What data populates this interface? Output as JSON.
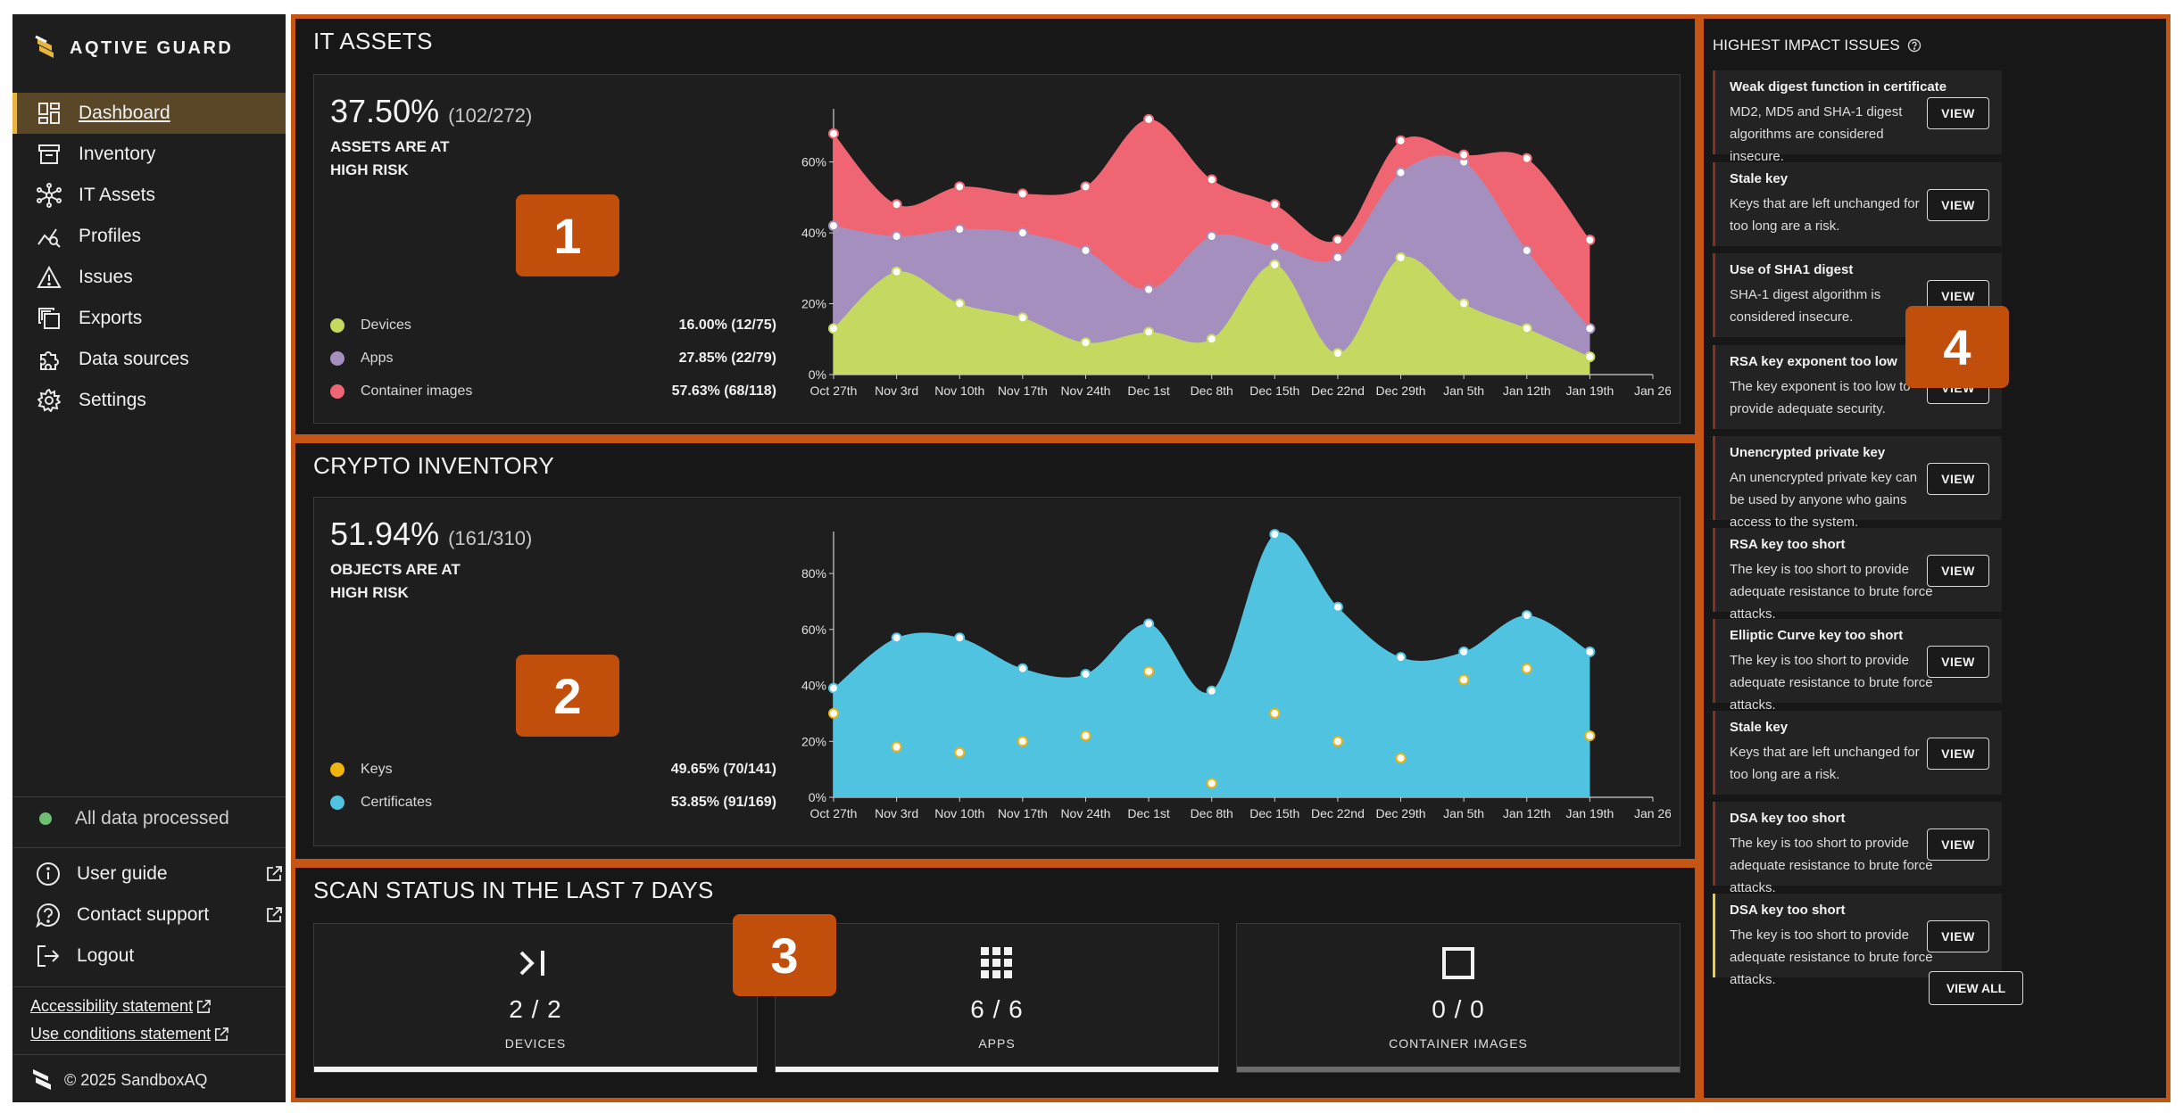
{
  "sidebar": {
    "logo_text": "AQTIVE GUARD",
    "nav": [
      {
        "label": "Dashboard",
        "icon": "dashboard-icon",
        "active": true
      },
      {
        "label": "Inventory",
        "icon": "archive-icon"
      },
      {
        "label": "IT Assets",
        "icon": "network-icon"
      },
      {
        "label": "Profiles",
        "icon": "chart-search-icon"
      },
      {
        "label": "Issues",
        "icon": "warning-icon"
      },
      {
        "label": "Exports",
        "icon": "copy-icon"
      },
      {
        "label": "Data sources",
        "icon": "puzzle-icon"
      },
      {
        "label": "Settings",
        "icon": "gear-icon"
      }
    ],
    "status": "All data processed",
    "links": [
      {
        "label": "User guide",
        "icon": "info-icon"
      },
      {
        "label": "Contact support",
        "icon": "help-icon"
      },
      {
        "label": "Logout",
        "icon": "logout-icon"
      }
    ],
    "accessibility": "Accessibility statement",
    "use_conditions": "Use conditions statement",
    "copyright": "© 2025 SandboxAQ"
  },
  "it_assets": {
    "title": "IT ASSETS",
    "percent": "37.50%",
    "fraction": "(102/272)",
    "risk_label": "ASSETS ARE AT HIGH RISK",
    "badge": "1",
    "legend": [
      {
        "name": "Devices",
        "value": "16.00%  (12/75)",
        "color": "#c5d85f"
      },
      {
        "name": "Apps",
        "value": "27.85%  (22/79)",
        "color": "#a58fbe"
      },
      {
        "name": "Container images",
        "value": "57.63%  (68/118)",
        "color": "#ef6672"
      }
    ]
  },
  "crypto": {
    "title": "CRYPTO INVENTORY",
    "percent": "51.94%",
    "fraction": "(161/310)",
    "risk_label": "OBJECTS ARE AT HIGH RISK",
    "badge": "2",
    "legend": [
      {
        "name": "Keys",
        "value": "49.65%  (70/141)",
        "color": "#f0b40f"
      },
      {
        "name": "Certificates",
        "value": "53.85%  (91/169)",
        "color": "#4fc3df"
      }
    ]
  },
  "scan": {
    "title": "SCAN STATUS IN THE LAST 7 DAYS",
    "badge": "3",
    "tiles": [
      {
        "count": "2 / 2",
        "label": "DEVICES",
        "icon": "terminal-icon",
        "bar": "#f2f2f2"
      },
      {
        "count": "6 / 6",
        "label": "APPS",
        "icon": "apps-grid-icon",
        "bar": "#f2f2f2"
      },
      {
        "count": "0 / 0",
        "label": "CONTAINER IMAGES",
        "icon": "square-icon",
        "bar": "#6b6b6b"
      }
    ]
  },
  "issues": {
    "title": "HIGHEST IMPACT ISSUES",
    "badge": "4",
    "view_label": "VIEW",
    "view_all": "VIEW ALL",
    "items": [
      {
        "title": "Weak digest function in certificate",
        "desc": "MD2, MD5 and SHA-1 digest algorithms are considered insecure."
      },
      {
        "title": "Stale key",
        "desc": "Keys that are left unchanged for too long are a risk."
      },
      {
        "title": "Use of SHA1 digest",
        "desc": "SHA-1 digest algorithm is considered insecure."
      },
      {
        "title": "RSA key exponent too low",
        "desc": "The key exponent is too low to provide adequate security."
      },
      {
        "title": "Unencrypted private key",
        "desc": "An unencrypted private key can be used by anyone who gains access to the system."
      },
      {
        "title": "RSA key too short",
        "desc": "The key is too short to provide adequate resistance to brute force attacks."
      },
      {
        "title": "Elliptic Curve key too short",
        "desc": "The key is too short to provide adequate resistance to brute force attacks."
      },
      {
        "title": "Stale key",
        "desc": "Keys that are left unchanged for too long are a risk."
      },
      {
        "title": "DSA key too short",
        "desc": "The key is too short to provide adequate resistance to brute force attacks."
      },
      {
        "title": "DSA key too short",
        "desc": "The key is too short to provide adequate resistance to brute force attacks.",
        "highlight": true
      }
    ]
  },
  "chart_data": [
    {
      "type": "area",
      "stacked": true,
      "x_ticks": [
        "Oct 27th",
        "Nov 3rd",
        "Nov 10th",
        "Nov 17th",
        "Nov 24th",
        "Dec 1st",
        "Dec 8th",
        "Dec 15th",
        "Dec 22nd",
        "Dec 29th",
        "Jan 5th",
        "Jan 12th",
        "Jan 19th",
        "Jan 26"
      ],
      "y_ticks": [
        "0%",
        "20%",
        "40%",
        "60%"
      ],
      "ylim": [
        0,
        75
      ],
      "series": [
        {
          "name": "Devices",
          "color": "#c5d85f",
          "values": [
            13,
            29,
            20,
            16,
            9,
            12,
            10,
            31,
            6,
            33,
            20,
            13,
            5
          ]
        },
        {
          "name": "Apps",
          "color": "#a58fbe",
          "values": [
            42,
            39,
            41,
            40,
            35,
            24,
            39,
            36,
            33,
            57,
            60,
            35,
            13
          ]
        },
        {
          "name": "Container images",
          "color": "#ef6672",
          "values": [
            68,
            48,
            53,
            51,
            53,
            72,
            55,
            48,
            38,
            66,
            62,
            61,
            38
          ]
        }
      ]
    },
    {
      "type": "area",
      "stacked": false,
      "x_ticks": [
        "Oct 27th",
        "Nov 3rd",
        "Nov 10th",
        "Nov 17th",
        "Nov 24th",
        "Dec 1st",
        "Dec 8th",
        "Dec 15th",
        "Dec 22nd",
        "Dec 29th",
        "Jan 5th",
        "Jan 12th",
        "Jan 19th",
        "Jan 26"
      ],
      "y_ticks": [
        "0%",
        "20%",
        "40%",
        "60%",
        "80%"
      ],
      "ylim": [
        0,
        95
      ],
      "series": [
        {
          "name": "Certificates",
          "color": "#4fc3df",
          "values": [
            39,
            57,
            57,
            46,
            44,
            62,
            38,
            94,
            68,
            50,
            52,
            65,
            52
          ]
        },
        {
          "name": "Keys",
          "color": "#f0b40f",
          "values": [
            30,
            18,
            16,
            20,
            22,
            45,
            5,
            30,
            20,
            14,
            42,
            46,
            22
          ]
        }
      ]
    }
  ]
}
